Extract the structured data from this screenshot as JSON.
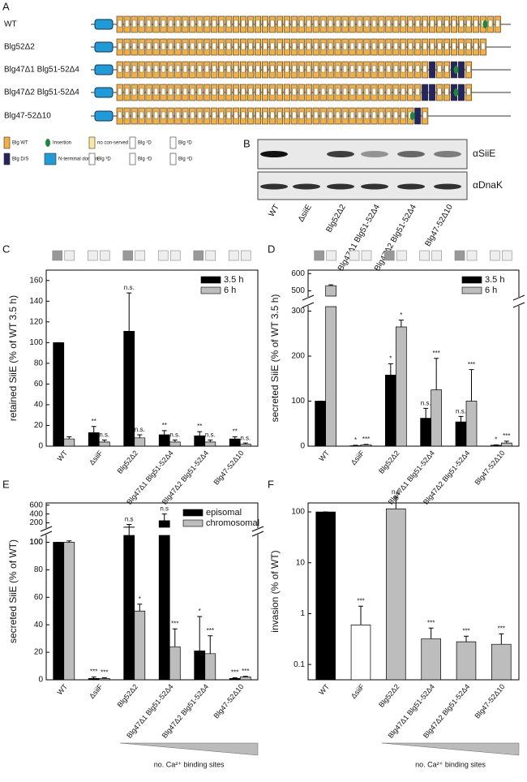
{
  "panel_labels": {
    "a": "A",
    "b": "B",
    "c": "C",
    "d": "D",
    "e": "E",
    "f": "F"
  },
  "construct_diagram": {
    "rows": [
      "WT",
      "Blg52Δ2",
      "Blg47Δ1 Blg51-52Δ4",
      "Blg47Δ2 Blg51-52Δ4",
      "Blg47-52Δ10"
    ],
    "legend": [
      "Blg WT",
      "Insertion",
      "no con-served D",
      "Blg ¹D",
      "Blg ²D",
      "Blg D/S",
      "N-terminal domain",
      "Blg ³D",
      "Blg ⁴D",
      "Blg ⁵D"
    ]
  },
  "western_blot": {
    "antibodies": [
      "αSiiE",
      "αDnaK"
    ],
    "lanes": [
      "WT",
      "ΔsiiE",
      "Blg52Δ2",
      "Blg47Δ1 Blg51-52Δ4",
      "Blg47Δ2 Blg51-52Δ4",
      "Blg47-52Δ10"
    ]
  },
  "chart_data": [
    {
      "type": "bar",
      "ylabel": "retained SiiE (% of WT 3.5 h)",
      "categories": [
        "WT",
        "ΔsiiF",
        "Blg52Δ2",
        "Blg47Δ1 Blg51-52Δ4",
        "Blg47Δ2 Blg51-52Δ4",
        "Blg47-52Δ10"
      ],
      "segments": [
        {
          "ylim": [
            0,
            170
          ],
          "yticks": [
            0,
            20,
            40,
            60,
            80,
            100,
            120,
            140,
            160
          ]
        }
      ],
      "legend": "upper right",
      "series": [
        {
          "name": "3.5 h",
          "color": "#000000",
          "values": [
            100,
            13,
            111,
            11,
            10,
            7
          ],
          "errors": [
            0,
            6,
            37,
            4,
            4,
            2
          ],
          "significance": [
            null,
            "**",
            "n.s.",
            "**",
            "**",
            "**"
          ]
        },
        {
          "name": "6 h",
          "color": "#bdbdbd",
          "values": [
            7,
            4,
            8,
            4,
            4,
            2
          ],
          "errors": [
            2,
            2,
            3,
            2,
            2,
            1
          ],
          "significance": [
            null,
            "n.s.",
            "n.s.",
            "n.s.",
            "n.s.",
            "n.s."
          ]
        }
      ]
    },
    {
      "type": "bar",
      "ylabel": "secreted SiiE (% of WT 3.5 h)",
      "categories": [
        "WT",
        "ΔsiiF",
        "Blg52Δ2",
        "Blg47Δ1 Blg51-52Δ4",
        "Blg47Δ2 Blg51-52Δ4",
        "Blg47-52Δ10"
      ],
      "segments": [
        {
          "ylim": [
            0,
            310
          ],
          "yticks": [
            0,
            100,
            200,
            300
          ]
        },
        {
          "ylim": [
            470,
            620
          ],
          "yticks": [
            500,
            600
          ]
        }
      ],
      "legend": "upper right",
      "series": [
        {
          "name": "3.5 h",
          "color": "#000000",
          "values": [
            100,
            1,
            158,
            62,
            54,
            2
          ],
          "errors": [
            0,
            1,
            25,
            22,
            12,
            1
          ],
          "significance": [
            null,
            "*",
            "*",
            "n.s.",
            "n.s.",
            "*"
          ]
        },
        {
          "name": "6 h",
          "color": "#bdbdbd",
          "values": [
            530,
            3,
            265,
            125,
            100,
            7
          ],
          "errors": [
            5,
            1,
            15,
            70,
            70,
            4
          ],
          "significance": [
            null,
            "***",
            "*",
            "***",
            "***",
            "***"
          ]
        }
      ]
    },
    {
      "type": "bar",
      "ylabel": "secreted SiiE (% of WT)",
      "categories": [
        "WT",
        "ΔsiiF",
        "Blg52Δ2",
        "Blg47Δ1 Blg51-52Δ4",
        "Blg47Δ2 Blg51-52Δ4",
        "Blg47-52Δ10"
      ],
      "segments": [
        {
          "ylim": [
            0,
            105
          ],
          "yticks": [
            0,
            20,
            40,
            60,
            80,
            100
          ]
        },
        {
          "ylim": [
            100,
            650
          ],
          "yticks": [
            100,
            200,
            400,
            600
          ]
        }
      ],
      "legend": "upper right",
      "annotation": "no. Ca²⁺ binding sites",
      "series": [
        {
          "name": "episomal",
          "color": "#000000",
          "values": [
            100,
            1,
            105,
            250,
            21,
            1
          ],
          "errors": [
            0,
            1,
            60,
            150,
            25,
            0.5
          ],
          "significance": [
            null,
            "***",
            "n.s",
            "n.s",
            "*",
            "***"
          ]
        },
        {
          "name": "chromosomal",
          "color": "#bdbdbd",
          "values": [
            100,
            1,
            50,
            24,
            19,
            2
          ],
          "errors": [
            1,
            0.5,
            5,
            13,
            13,
            0.5
          ],
          "significance": [
            null,
            "***",
            "*",
            "***",
            "***",
            "***"
          ]
        }
      ]
    },
    {
      "type": "bar",
      "ylabel": "invasion (% of WT)",
      "log_scale": true,
      "categories": [
        "WT",
        "ΔsiiF",
        "Blg52Δ2",
        "Blg47Δ1 Blg51-52Δ4",
        "Blg47Δ2 Blg51-52Δ4",
        "Blg47-52Δ10"
      ],
      "ylim": [
        0.05,
        150
      ],
      "yticks": [
        0.1,
        1,
        10,
        100
      ],
      "annotation": "no. Ca²⁺ binding sites",
      "values": [
        100,
        0.6,
        115,
        0.32,
        0.28,
        0.25
      ],
      "errors": [
        0,
        0.8,
        80,
        0.2,
        0.08,
        0.15
      ],
      "colors": [
        "#000000",
        "#ffffff",
        "#bdbdbd",
        "#bdbdbd",
        "#bdbdbd",
        "#bdbdbd"
      ],
      "significance": [
        null,
        "***",
        "n.s",
        "***",
        "***",
        "***"
      ]
    }
  ]
}
